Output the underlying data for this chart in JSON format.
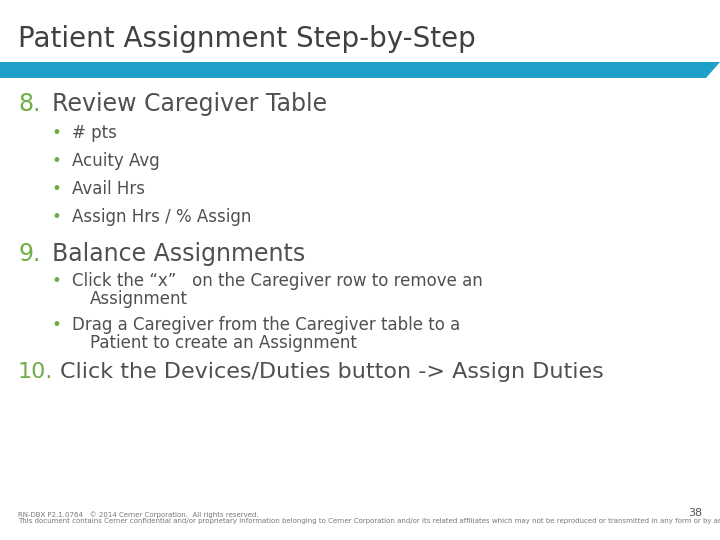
{
  "title": "Patient Assignment Step-by-Step",
  "title_color": "#404040",
  "title_fontsize": 20,
  "bg_color": "#ffffff",
  "bar_color": "#1FA0C8",
  "green_color": "#70AD47",
  "dark_color": "#505050",
  "bullet_color": "#70AD47",
  "step8_num": "8.",
  "step8_heading": "Review Caregiver Table",
  "step8_bullets": [
    "# pts",
    "Acuity Avg",
    "Avail Hrs",
    "Assign Hrs / % Assign"
  ],
  "step9_num": "9.",
  "step9_heading": "Balance Assignments",
  "step9_bullet1_line1": "Click the “x”   on the Caregiver row to remove an",
  "step9_bullet1_line2": "Assignment",
  "step9_bullet2_line1": "Drag a Caregiver from the Caregiver table to a",
  "step9_bullet2_line2": "Patient to create an Assignment",
  "step10_num": "10.",
  "step10_text": "Click the Devices/Duties button -> Assign Duties",
  "footer_line1": "RN-DBX P2.1.0764   © 2014 Cerner Corporation.  All rights reserved.",
  "footer_line2": "This document contains Cerner confidential and/or proprietary information belonging to Cerner Corporation and/or its related affiliates which may not be reproduced or transmitted in any form or by any means without the express written consent of Cerner.",
  "page_num": "38",
  "heading_fontsize": 17,
  "body_fontsize": 12,
  "step10_fontsize": 16,
  "footer_fontsize": 5
}
